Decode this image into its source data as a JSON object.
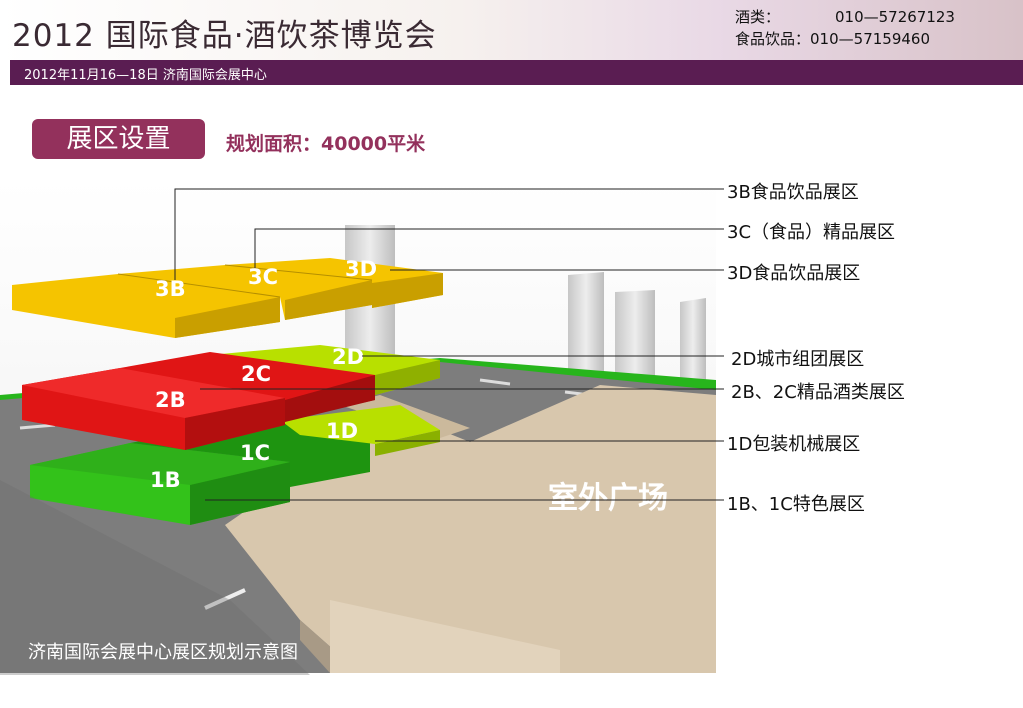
{
  "header": {
    "title": "2012 国际食品·酒饮茶博览会",
    "contacts": [
      {
        "label": "酒类：",
        "phone": "010—57267123"
      },
      {
        "label": "食品饮品：",
        "phone": "010—57159460"
      }
    ],
    "date_venue": "2012年11月16—18日  济南国际会展中心"
  },
  "section": {
    "tag": "展区设置",
    "area": "规划面积：40000平米"
  },
  "map": {
    "plaza_label": "室外广场",
    "caption": "济南国际会展中心展区规划示意图",
    "block_labels": {
      "b3": "3B",
      "c3": "3C",
      "d3": "3D",
      "d2": "2D",
      "c2": "2C",
      "b2": "2B",
      "d1": "1D",
      "c1": "1C",
      "b1": "1B"
    },
    "colors": {
      "floor3": "#f5c400",
      "floor2": "#e01515",
      "floor1": "#33c21a",
      "floor_d_green": "#b8e000",
      "plaza": "#d8c7ad",
      "road": "#7d7d7d"
    }
  },
  "legend": [
    "3B食品饮品展区",
    "3C（食品）精品展区",
    "3D食品饮品展区",
    "2D城市组团展区",
    "2B、2C精品酒类展区",
    "1D包装机械展区",
    "1B、1C特色展区"
  ]
}
